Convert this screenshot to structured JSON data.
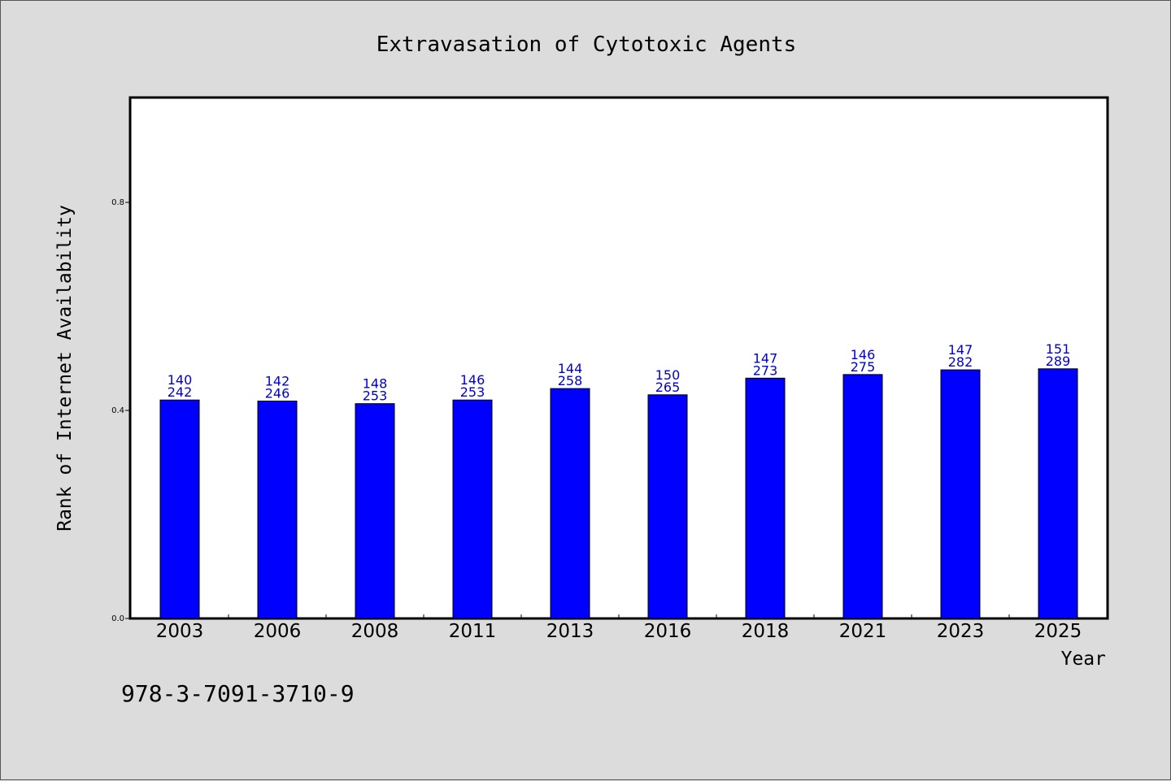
{
  "chart_data": {
    "type": "bar",
    "title": "Extravasation of Cytotoxic Agents",
    "xlabel": "Year",
    "ylabel": "Rank of Internet Availability",
    "categories": [
      "2003",
      "2006",
      "2008",
      "2011",
      "2013",
      "2016",
      "2018",
      "2021",
      "2023",
      "2025"
    ],
    "values": [
      0.42,
      0.418,
      0.413,
      0.42,
      0.442,
      0.43,
      0.462,
      0.469,
      0.478,
      0.48
    ],
    "bar_labels_top": [
      "140",
      "142",
      "148",
      "146",
      "144",
      "150",
      "147",
      "146",
      "147",
      "151"
    ],
    "bar_labels_bottom": [
      "242",
      "246",
      "253",
      "253",
      "258",
      "265",
      "273",
      "275",
      "282",
      "289"
    ],
    "ylim": [
      0.0,
      1.0
    ],
    "yticks": [
      0.0,
      0.4,
      0.8
    ],
    "ytick_labels": [
      "0.0",
      "0.4",
      "0.8"
    ],
    "grid": false,
    "bar_color": "#0000ff",
    "label_color": "#0000cc",
    "background": "#dcdcdc",
    "plot_background": "#ffffff"
  },
  "footer": {
    "isbn": "978-3-7091-3710-9"
  }
}
